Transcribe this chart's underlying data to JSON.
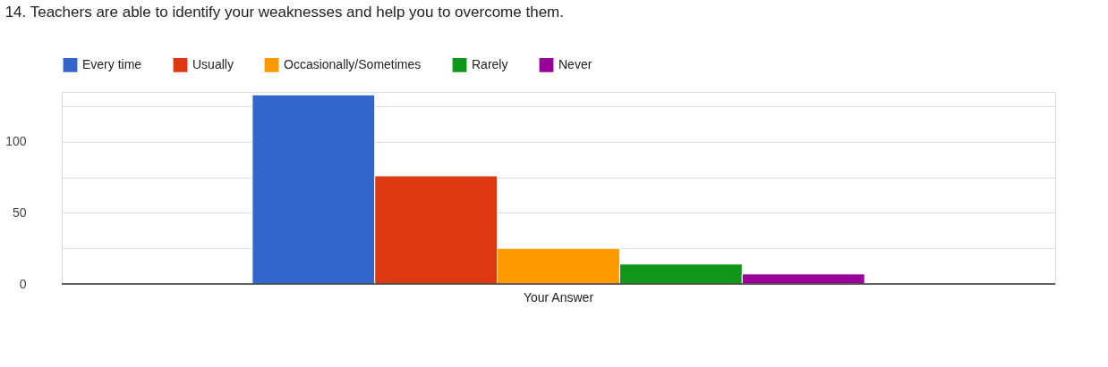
{
  "chart_data": {
    "type": "bar",
    "title": "14. Teachers are able to identify your weaknesses and help you to overcome them.",
    "categories": [
      "Your Answer"
    ],
    "series": [
      {
        "name": "Every time",
        "color": "#3366cc",
        "values": [
          133
        ]
      },
      {
        "name": "Usually",
        "color": "#dc3912",
        "values": [
          76
        ]
      },
      {
        "name": "Occasionally/Sometimes",
        "color": "#ff9900",
        "values": [
          25
        ]
      },
      {
        "name": "Rarely",
        "color": "#109618",
        "values": [
          14
        ]
      },
      {
        "name": "Never",
        "color": "#990099",
        "values": [
          7
        ]
      }
    ],
    "ylim": [
      0,
      135
    ],
    "yticks": [
      0,
      {
        "value": 25,
        "label": null
      },
      50,
      {
        "value": 75,
        "label": null
      },
      100,
      {
        "value": 125,
        "label": null
      }
    ],
    "grid": "y",
    "legend": "top"
  }
}
